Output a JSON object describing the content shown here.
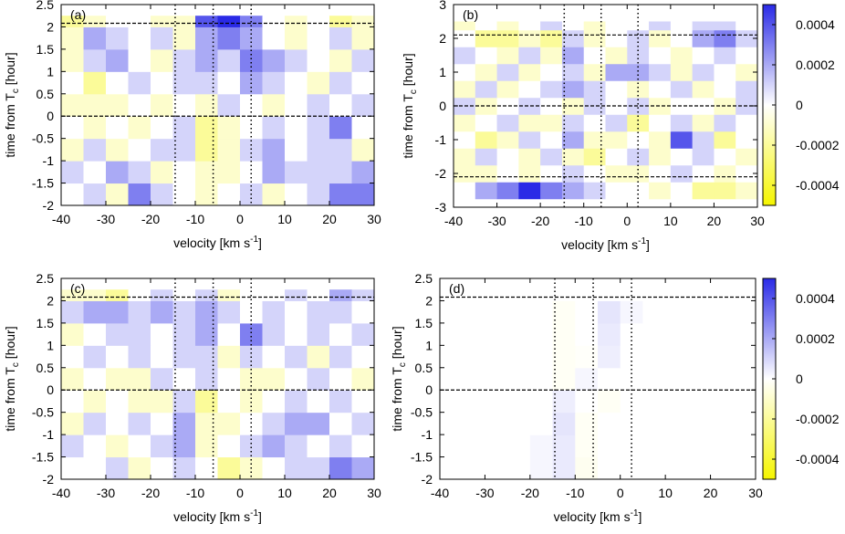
{
  "chart_data": [
    {
      "type": "heatmap",
      "label": "(a)",
      "xlabel": [
        "velocity [km s",
        "-1",
        "]"
      ],
      "ylabel": [
        "time from T",
        "c",
        " [hour]"
      ],
      "xlim": [
        -40,
        30
      ],
      "xticks": [
        -40,
        -30,
        -20,
        -10,
        0,
        10,
        20,
        30
      ],
      "ylim": [
        -2,
        2.5
      ],
      "yticks": [
        -2,
        -1.5,
        -1,
        -0.5,
        0,
        0.5,
        1,
        1.5,
        2,
        2.5
      ],
      "zlim": [
        -0.0005,
        0.0005
      ],
      "xbins": [
        -40,
        -35,
        -30,
        -25,
        -20,
        -15,
        -10,
        -5,
        0,
        5,
        10,
        15,
        20,
        25,
        30
      ],
      "ybins": [
        -2,
        -1.5,
        -1,
        -0.5,
        0,
        0.5,
        1,
        1.5,
        2,
        2.25
      ],
      "z": [
        [
          0,
          0.0001,
          -0.0001,
          0.0003,
          0.0001,
          0,
          -0.0001,
          0,
          0.0001,
          -0.0001,
          0,
          0.0001,
          0.0003,
          0.0003
        ],
        [
          0.0001,
          0,
          0.0002,
          0.0001,
          -0.0001,
          0,
          -0.0001,
          -0.0001,
          0,
          0.0002,
          0.0001,
          0.0001,
          0.0001,
          0.0002
        ],
        [
          -0.0001,
          0.0001,
          -0.0001,
          0,
          0.0001,
          0.0001,
          -0.0002,
          -0.0001,
          0.0001,
          0.0002,
          0,
          0.0001,
          0.0001,
          -0.0001
        ],
        [
          0,
          -0.0001,
          0,
          -0.0001,
          0,
          0.0001,
          -0.0002,
          -0.0001,
          0,
          0.0001,
          0,
          0.0001,
          0.0003,
          0
        ],
        [
          -0.0001,
          -0.0001,
          -0.0001,
          0,
          -0.0001,
          0,
          -0.0001,
          0.0001,
          0,
          -0.0001,
          0,
          0.0001,
          0,
          0.0001
        ],
        [
          0,
          -0.0002,
          0,
          0.0001,
          0,
          0.0001,
          0.0001,
          0,
          0.0002,
          0.0001,
          0,
          -0.0001,
          0.0001,
          0
        ],
        [
          -0.0001,
          0.0001,
          0.0002,
          0,
          -0.0001,
          0.0001,
          0.0002,
          0.0001,
          0.0003,
          0.0002,
          0.0001,
          0,
          -0.0001,
          0.0001
        ],
        [
          -0.0001,
          0.0002,
          0.0001,
          0,
          0.0001,
          -0.0001,
          0.0002,
          0.0003,
          0.0002,
          0,
          -0.0001,
          0,
          0.0001,
          -0.0001
        ],
        [
          -0.0002,
          -0.0001,
          0,
          0,
          -0.0001,
          -0.0001,
          0.0004,
          0.0005,
          0.0003,
          0,
          -0.0001,
          0,
          -0.0002,
          -0.0001
        ]
      ],
      "hlines": [
        2.08,
        0
      ],
      "vlines": [
        -14.5,
        -6,
        2.5
      ]
    },
    {
      "type": "heatmap",
      "label": "(b)",
      "xlabel": [
        "velocity [km s",
        "-1",
        "]"
      ],
      "ylabel": [
        "time from T",
        "c",
        " [hour]"
      ],
      "xlim": [
        -40,
        30
      ],
      "xticks": [
        -40,
        -30,
        -20,
        -10,
        0,
        10,
        20,
        30
      ],
      "ylim": [
        -3,
        3
      ],
      "yticks": [
        -3,
        -2,
        -1,
        0,
        1,
        2,
        3
      ],
      "zlim": [
        -0.0005,
        0.0005
      ],
      "zticks": [
        0.0004,
        0.0002,
        0,
        -0.0002,
        -0.0004
      ],
      "xbins": [
        -40,
        -35,
        -30,
        -25,
        -20,
        -15,
        -10,
        -5,
        0,
        5,
        10,
        15,
        20,
        25,
        30
      ],
      "ybins": [
        -2.75,
        -2.25,
        -1.75,
        -1.25,
        -0.75,
        -0.25,
        0.25,
        0.75,
        1.25,
        1.75,
        2.25,
        2.5
      ],
      "z": [
        [
          0,
          0.0002,
          0.0003,
          0.0005,
          0.0003,
          0.0002,
          0.0001,
          0,
          0,
          -0.0001,
          0,
          -0.0002,
          -0.0002,
          -0.0001
        ],
        [
          -0.0001,
          -0.0001,
          0,
          -0.0001,
          0,
          0.0001,
          0,
          -0.0001,
          -0.0001,
          0,
          0.0001,
          0,
          -0.0001,
          0
        ],
        [
          -0.0001,
          0.0001,
          0,
          -0.0001,
          0.0001,
          -0.0001,
          -0.0002,
          0,
          0.0001,
          -0.0001,
          0,
          0.0001,
          0,
          -0.0001
        ],
        [
          0,
          -0.0002,
          -0.0001,
          0.0001,
          0,
          0.0002,
          -0.0001,
          -0.0001,
          0,
          -0.0001,
          0.0004,
          0.0001,
          -0.0002,
          0
        ],
        [
          -0.0001,
          0,
          0.0001,
          -0.0001,
          -0.0001,
          0.0001,
          0,
          0.0001,
          -0.0002,
          0,
          0.0001,
          -0.0001,
          0.0001,
          0
        ],
        [
          0.0001,
          -0.0001,
          0,
          0.0001,
          0,
          -0.0001,
          0.0001,
          0,
          0.0001,
          -0.0001,
          0,
          0,
          -0.0001,
          0.0001
        ],
        [
          -0.0001,
          0.0001,
          -0.0001,
          0,
          0.0001,
          0.0002,
          0.0001,
          0,
          -0.0001,
          0,
          0.0001,
          -0.0001,
          0,
          0.0001
        ],
        [
          0,
          -0.0001,
          0.0001,
          -0.0001,
          0,
          0.0001,
          -0.0001,
          0.0002,
          0.0002,
          0.0001,
          -0.0001,
          0.0001,
          0,
          -0.0001
        ],
        [
          0.0001,
          0,
          -0.0001,
          0.0001,
          -0.0001,
          0.0002,
          0,
          -0.0001,
          0.0001,
          0,
          -0.0001,
          0,
          0.0001,
          0
        ],
        [
          0,
          -0.0002,
          -0.0002,
          -0.0001,
          -0.0002,
          0.0001,
          -0.0001,
          0,
          0.0001,
          -0.0001,
          0,
          0.0002,
          0.0003,
          0.0001
        ],
        [
          -0.0001,
          0,
          -0.0001,
          0,
          0.0001,
          0,
          -0.0001,
          0,
          0,
          0.0001,
          0,
          0.0001,
          0.0001,
          0
        ]
      ],
      "hlines": [
        2.1,
        0,
        -2.1
      ],
      "vlines": [
        -14.5,
        -6,
        2.5
      ]
    },
    {
      "type": "heatmap",
      "label": "(c)",
      "xlabel": [
        "velocity [km s",
        "-1",
        "]"
      ],
      "ylabel": [
        "time from T",
        "c",
        " [hour]"
      ],
      "xlim": [
        -40,
        30
      ],
      "xticks": [
        -40,
        -30,
        -20,
        -10,
        0,
        10,
        20,
        30
      ],
      "ylim": [
        -2,
        2.5
      ],
      "yticks": [
        -2,
        -1.5,
        -1,
        -0.5,
        0,
        0.5,
        1,
        1.5,
        2,
        2.5
      ],
      "zlim": [
        -0.0005,
        0.0005
      ],
      "xbins": [
        -40,
        -35,
        -30,
        -25,
        -20,
        -15,
        -10,
        -5,
        0,
        5,
        10,
        15,
        20,
        25,
        30
      ],
      "ybins": [
        -2,
        -1.5,
        -1,
        -0.5,
        0,
        0.5,
        1,
        1.5,
        2,
        2.25
      ],
      "z": [
        [
          0,
          0,
          0.0001,
          -0.0001,
          0,
          0.0001,
          0,
          -0.0002,
          -0.0001,
          0,
          0.0001,
          0.0001,
          0.0003,
          0.0002
        ],
        [
          0.0001,
          0,
          -0.0001,
          0,
          0.0001,
          0.0002,
          -0.0001,
          0,
          0.0001,
          0.0002,
          0.0001,
          0,
          0.0001,
          0
        ],
        [
          -0.0001,
          0.0001,
          0,
          0.0001,
          0,
          0.0002,
          -0.0001,
          -0.0001,
          0,
          0.0001,
          0.0002,
          0.0002,
          0,
          0.0001
        ],
        [
          0,
          -0.0001,
          0,
          -0.0001,
          -0.0001,
          0.0001,
          -0.0002,
          0,
          -0.0001,
          0,
          0.0001,
          0,
          0.0001,
          0
        ],
        [
          -0.0001,
          0,
          -0.0001,
          -0.0001,
          0.0001,
          0,
          0.0001,
          0,
          -0.0001,
          -0.0001,
          0,
          0.0001,
          0,
          -0.0001
        ],
        [
          0,
          0.0001,
          0,
          0.0001,
          0,
          0.0001,
          0.0001,
          -0.0001,
          0.0001,
          0,
          0.0001,
          -0.0001,
          0.0001,
          0
        ],
        [
          -0.0001,
          0,
          0.0001,
          0.0001,
          0,
          0.0001,
          0.0002,
          0,
          0.0003,
          0.0001,
          0,
          0.0001,
          0,
          0.0001
        ],
        [
          0.0001,
          0.0002,
          0.0002,
          0.0001,
          0.0002,
          0.0001,
          0.0002,
          0.0001,
          0,
          0.0001,
          0,
          0.0001,
          0.0001,
          0
        ],
        [
          -0.0001,
          -0.0001,
          -0.0002,
          0,
          0.0001,
          0,
          0.0001,
          -0.0001,
          0,
          0,
          0.0001,
          0,
          0.0002,
          0.0001
        ]
      ],
      "hlines": [
        2.08,
        0
      ],
      "vlines": [
        -14.5,
        -6,
        2.5
      ]
    },
    {
      "type": "heatmap",
      "label": "(d)",
      "xlabel": [
        "velocity [km s",
        "-1",
        "]"
      ],
      "ylabel": [
        "time from T",
        "c",
        " [hour]"
      ],
      "xlim": [
        -40,
        30
      ],
      "xticks": [
        -40,
        -30,
        -20,
        -10,
        0,
        10,
        20,
        30
      ],
      "ylim": [
        -2,
        2.5
      ],
      "yticks": [
        -2,
        -1.5,
        -1,
        -0.5,
        0,
        0.5,
        1,
        1.5,
        2,
        2.5
      ],
      "zlim": [
        -0.0005,
        0.0005
      ],
      "zticks": [
        0.0004,
        0.0002,
        0,
        -0.0002,
        -0.0004
      ],
      "xbins": [
        -40,
        -35,
        -30,
        -25,
        -20,
        -15,
        -10,
        -5,
        0,
        5,
        10,
        15,
        20,
        25,
        30
      ],
      "ybins": [
        -2,
        -1.5,
        -1,
        -0.5,
        0,
        0.5,
        1,
        1.5,
        2,
        2.25
      ],
      "z": [
        [
          0,
          0,
          0,
          0,
          2e-05,
          5e-05,
          -3e-05,
          0,
          0,
          0,
          0,
          0,
          0,
          0
        ],
        [
          0,
          0,
          0,
          0,
          2e-05,
          5e-05,
          -2e-05,
          0,
          0,
          0,
          0,
          0,
          0,
          0
        ],
        [
          0,
          0,
          0,
          0,
          0,
          6e-05,
          -2e-05,
          0,
          0,
          0,
          0,
          0,
          0,
          0
        ],
        [
          0,
          0,
          0,
          0,
          0,
          4e-05,
          0,
          -2e-05,
          0,
          0,
          0,
          0,
          0,
          0
        ],
        [
          0,
          0,
          0,
          0,
          0,
          -2e-05,
          2e-05,
          0,
          0,
          0,
          0,
          0,
          0,
          0
        ],
        [
          0,
          0,
          0,
          0,
          0,
          -2e-05,
          -1e-05,
          4e-05,
          0,
          0,
          0,
          0,
          0,
          0
        ],
        [
          0,
          0,
          0,
          0,
          0,
          -2e-05,
          0,
          5e-05,
          0,
          0,
          0,
          0,
          0,
          0
        ],
        [
          0,
          0,
          0,
          0,
          0,
          -2e-05,
          0,
          6e-05,
          2e-05,
          0,
          0,
          0,
          0,
          0
        ],
        [
          0,
          0,
          0,
          0,
          0,
          0,
          0,
          0,
          0,
          0,
          0,
          0,
          0,
          0
        ]
      ],
      "hlines": [
        2.08,
        0
      ],
      "vlines": [
        -14.5,
        -6,
        2.5
      ]
    }
  ]
}
